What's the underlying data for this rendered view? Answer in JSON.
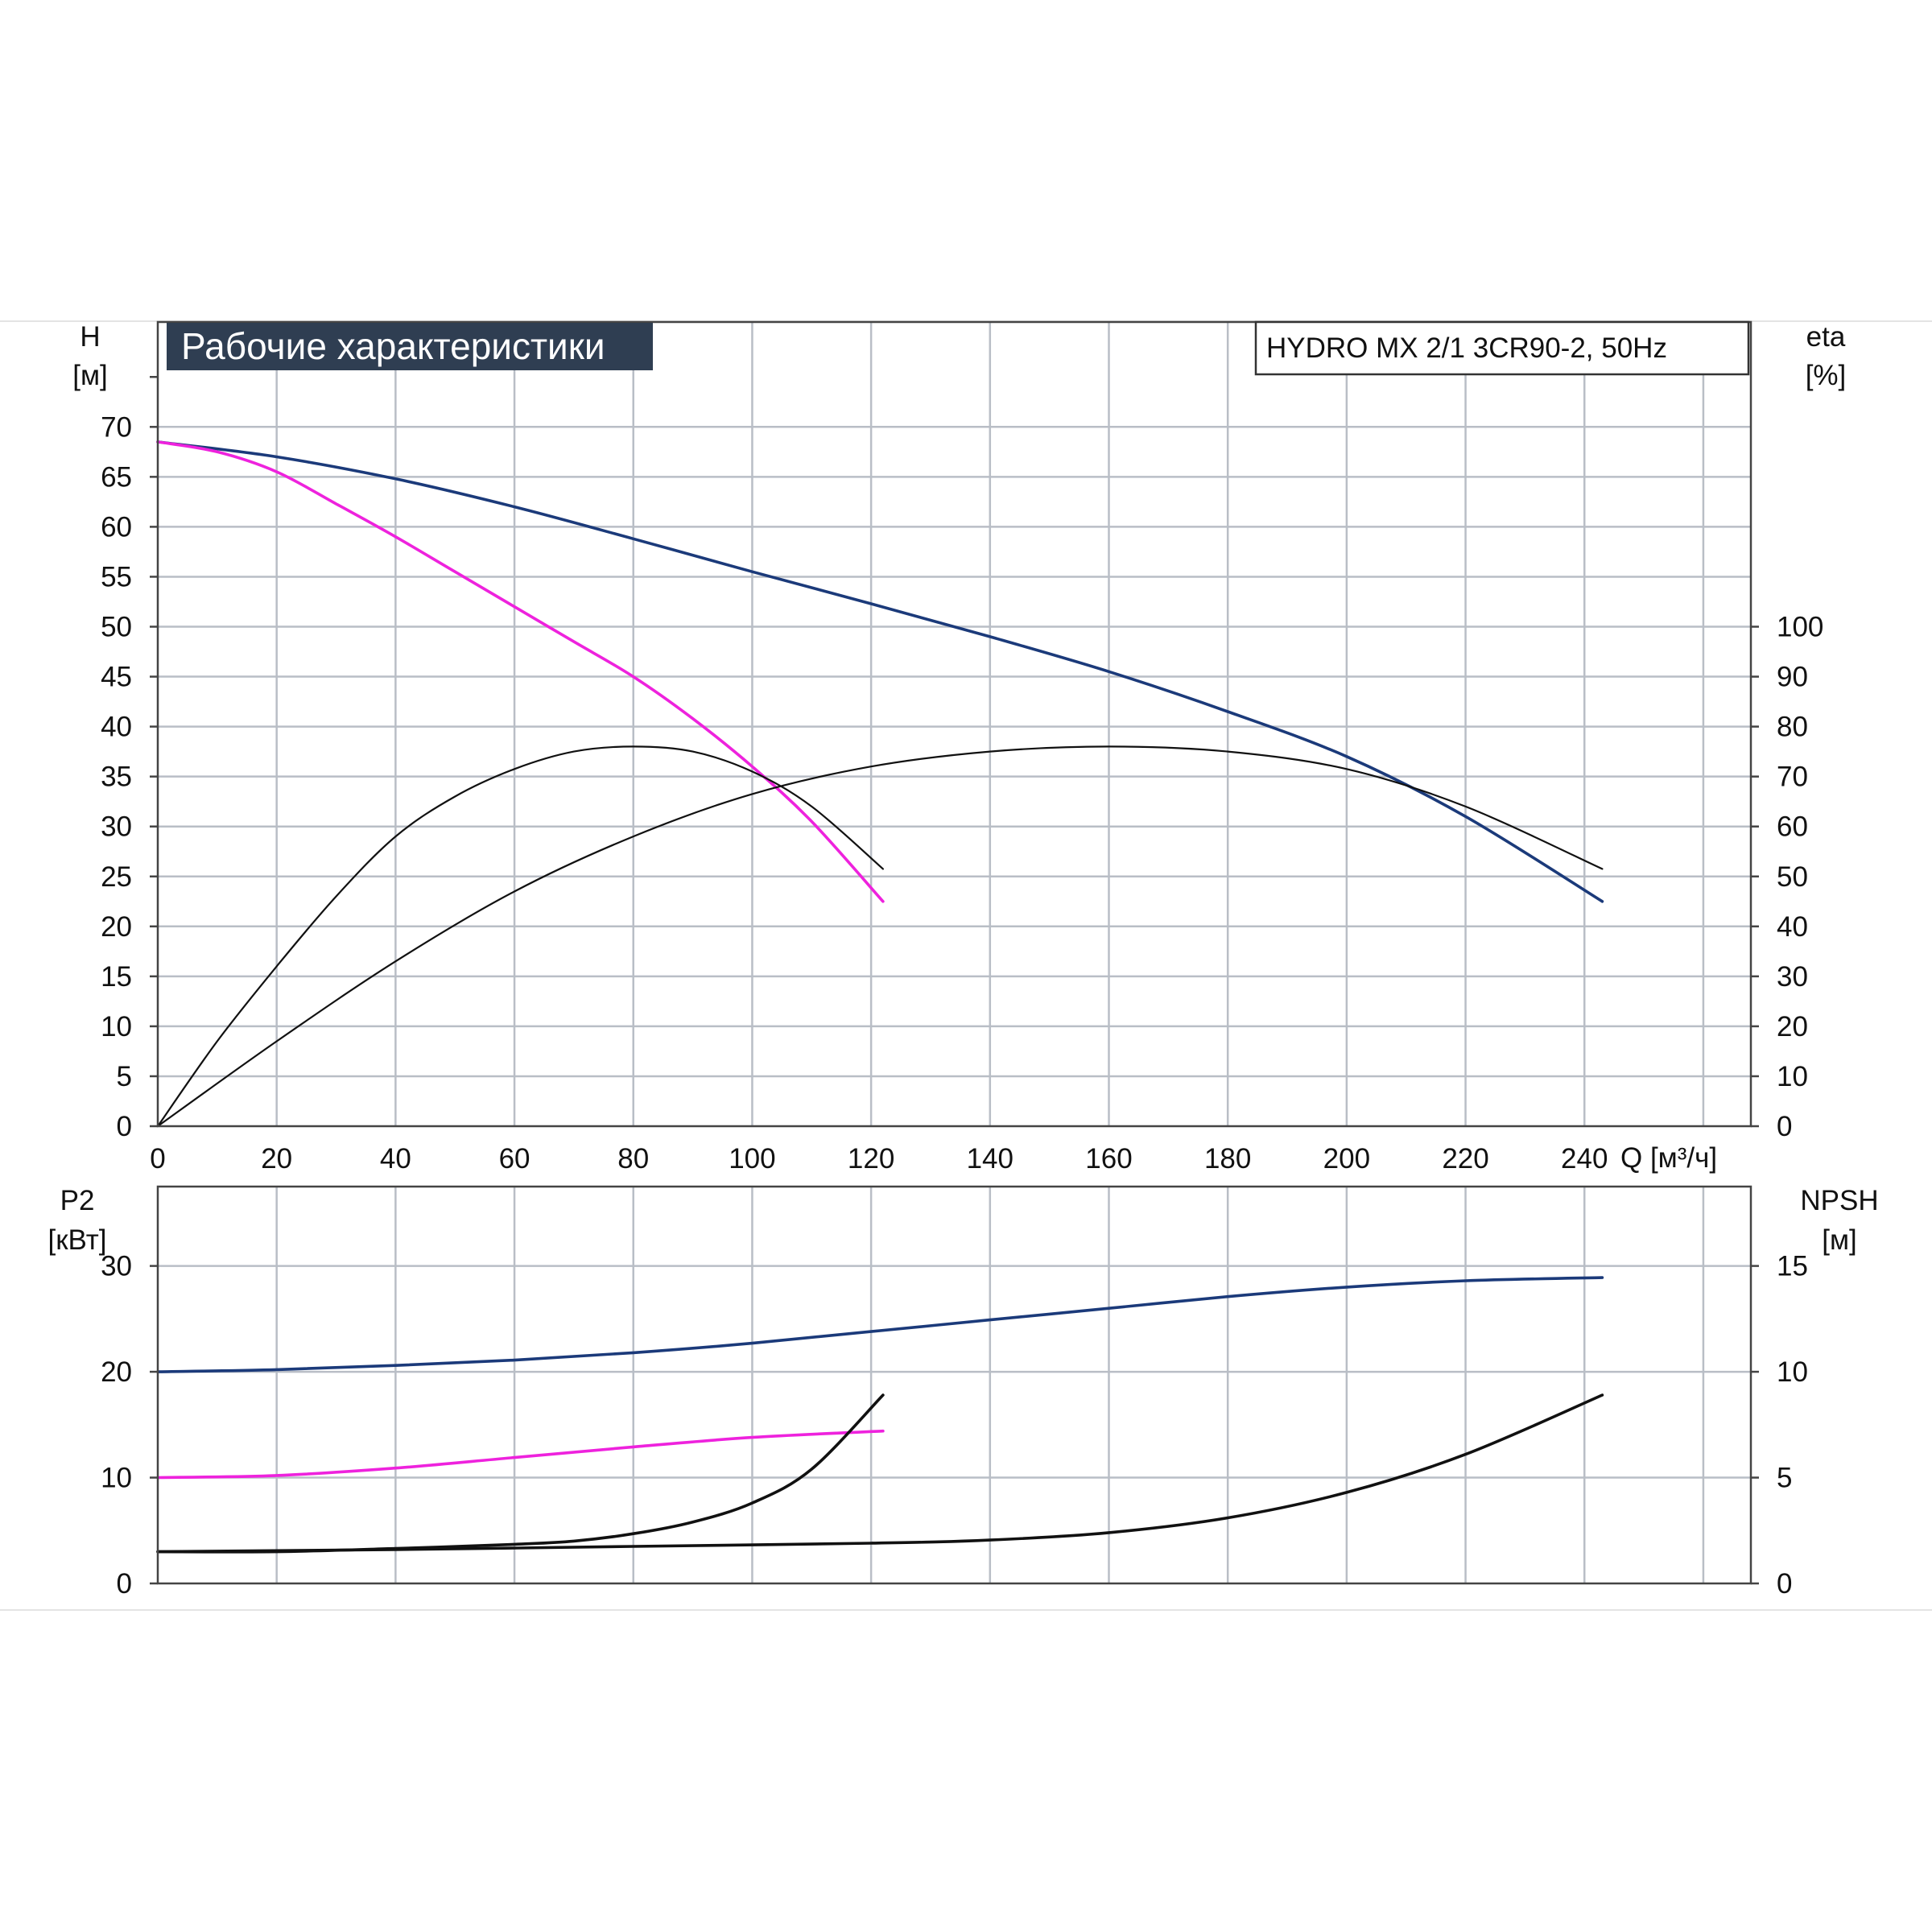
{
  "chart_data": [
    {
      "type": "line",
      "panel": "performance",
      "title": "Рабочие характеристики",
      "model": "HYDRO MX 2/1 3CR90-2, 50Hz",
      "xlabel": "Q [м³/ч]",
      "ylabel_left": "H",
      "ylabel_left_unit": "[м]",
      "ylabel_right": "eta",
      "ylabel_right_unit": "[%]",
      "xlim": [
        0,
        268
      ],
      "ylim_left": [
        0,
        80.5
      ],
      "ylim_right": [
        0,
        161
      ],
      "x_ticks": [
        0,
        20,
        40,
        60,
        80,
        100,
        120,
        140,
        160,
        180,
        200,
        220,
        240
      ],
      "y_ticks_left": [
        0,
        5,
        10,
        15,
        20,
        25,
        30,
        35,
        40,
        45,
        50,
        55,
        60,
        65,
        70
      ],
      "y_ticks_right": [
        0,
        10,
        20,
        30,
        40,
        50,
        60,
        70,
        80,
        90,
        100
      ],
      "grid": true,
      "colors": {
        "blue": "#1b3a7a",
        "magenta": "#ee22dd",
        "black": "#111111"
      },
      "series": [
        {
          "color": "blue",
          "axis": "left",
          "x": [
            0,
            20,
            40,
            60,
            80,
            100,
            120,
            140,
            160,
            180,
            200,
            220,
            243
          ],
          "y": [
            68.5,
            67.0,
            64.8,
            62.0,
            58.8,
            55.5,
            52.3,
            49.0,
            45.5,
            41.5,
            37.0,
            31.0,
            22.5
          ]
        },
        {
          "color": "magenta",
          "axis": "left",
          "x": [
            0,
            10,
            20,
            30,
            40,
            50,
            60,
            70,
            80,
            90,
            100,
            110,
            122
          ],
          "y": [
            68.5,
            67.5,
            65.5,
            62.3,
            59.0,
            55.5,
            52.0,
            48.5,
            45.0,
            40.8,
            36.0,
            30.5,
            22.5
          ]
        },
        {
          "color": "black",
          "axis": "right",
          "x": [
            0,
            10,
            20,
            30,
            40,
            50,
            60,
            70,
            80,
            90,
            100,
            110,
            122
          ],
          "y": [
            0,
            17,
            32,
            46,
            58,
            66,
            71.5,
            75,
            76,
            75,
            71,
            64,
            51.5
          ]
        },
        {
          "color": "black",
          "axis": "right",
          "x": [
            0,
            20,
            40,
            60,
            80,
            100,
            120,
            140,
            160,
            180,
            200,
            220,
            243
          ],
          "y": [
            0,
            17,
            33,
            47,
            58,
            66.5,
            72,
            75,
            76,
            75,
            71.5,
            64,
            51.5
          ]
        }
      ]
    },
    {
      "type": "line",
      "panel": "power-npsh",
      "xlabel": "",
      "ylabel_left": "P2",
      "ylabel_left_unit": "[кВт]",
      "ylabel_right": "NPSH",
      "ylabel_right_unit": "[м]",
      "xlim": [
        0,
        268
      ],
      "ylim_left": [
        0,
        37.5
      ],
      "ylim_right": [
        0,
        18.75
      ],
      "y_ticks_left": [
        0,
        10,
        20,
        30
      ],
      "y_ticks_right": [
        0,
        5,
        10,
        15
      ],
      "grid": true,
      "series": [
        {
          "color": "blue",
          "axis": "left",
          "x": [
            0,
            20,
            40,
            60,
            80,
            100,
            120,
            140,
            160,
            180,
            200,
            220,
            243
          ],
          "y": [
            20.0,
            20.2,
            20.6,
            21.1,
            21.8,
            22.7,
            23.8,
            24.9,
            26.0,
            27.1,
            28.0,
            28.6,
            28.9
          ]
        },
        {
          "color": "magenta",
          "axis": "left",
          "x": [
            0,
            20,
            40,
            60,
            80,
            100,
            122
          ],
          "y": [
            10.0,
            10.2,
            10.9,
            11.9,
            12.9,
            13.8,
            14.4
          ]
        },
        {
          "color": "black",
          "axis": "right",
          "x": [
            0,
            20,
            40,
            60,
            70,
            80,
            90,
            100,
            110,
            122
          ],
          "y": [
            1.5,
            1.5,
            1.65,
            1.85,
            2.0,
            2.35,
            2.9,
            3.8,
            5.4,
            8.9
          ]
        },
        {
          "color": "black",
          "axis": "right",
          "x": [
            0,
            40,
            80,
            120,
            140,
            160,
            180,
            200,
            220,
            243
          ],
          "y": [
            1.5,
            1.6,
            1.75,
            1.9,
            2.05,
            2.4,
            3.1,
            4.3,
            6.1,
            8.9
          ]
        }
      ]
    }
  ]
}
